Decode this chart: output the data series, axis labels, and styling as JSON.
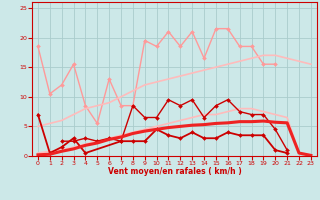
{
  "title": "",
  "xlabel": "Vent moyen/en rafales ( km/h )",
  "ylabel": "",
  "xlim": [
    -0.5,
    23.5
  ],
  "ylim": [
    0,
    26
  ],
  "yticks": [
    0,
    5,
    10,
    15,
    20,
    25
  ],
  "xticks": [
    0,
    1,
    2,
    3,
    4,
    5,
    6,
    7,
    8,
    9,
    10,
    11,
    12,
    13,
    14,
    15,
    16,
    17,
    18,
    19,
    20,
    21,
    22,
    23
  ],
  "bg_color": "#cce8e8",
  "grid_color": "#aacccc",
  "series": [
    {
      "x": [
        0,
        1,
        2,
        3,
        4,
        5,
        6,
        7,
        8,
        9,
        10,
        11,
        12,
        13,
        14,
        15,
        16,
        17,
        18,
        19,
        20,
        21,
        22,
        23
      ],
      "y": [
        18.5,
        10.5,
        12.0,
        15.5,
        8.5,
        5.5,
        13.0,
        8.5,
        8.5,
        19.5,
        18.5,
        21.0,
        18.5,
        21.0,
        16.5,
        21.5,
        21.5,
        18.5,
        18.5,
        15.5,
        15.5,
        null,
        null,
        null
      ],
      "color": "#ff9999",
      "lw": 1.0,
      "marker": "D",
      "ms": 2.0
    },
    {
      "x": [
        0,
        1,
        2,
        3,
        4,
        5,
        6,
        7,
        8,
        9,
        10,
        11,
        12,
        13,
        14,
        15,
        16,
        17,
        18,
        19,
        20,
        21,
        22,
        23
      ],
      "y": [
        5.0,
        5.5,
        6.0,
        7.0,
        8.0,
        8.5,
        9.0,
        10.0,
        11.0,
        12.0,
        12.5,
        13.0,
        13.5,
        14.0,
        14.5,
        15.0,
        15.5,
        16.0,
        16.5,
        17.0,
        17.0,
        16.5,
        16.0,
        15.5
      ],
      "color": "#ffbbbb",
      "lw": 1.2,
      "marker": null,
      "ms": 0
    },
    {
      "x": [
        0,
        1,
        2,
        3,
        4,
        5,
        6,
        7,
        8,
        9,
        10,
        11,
        12,
        13,
        14,
        15,
        16,
        17,
        18,
        19,
        20,
        21,
        22,
        23
      ],
      "y": [
        0.5,
        0.8,
        1.0,
        1.5,
        2.0,
        2.5,
        3.0,
        3.5,
        4.0,
        4.5,
        5.0,
        5.5,
        6.0,
        6.5,
        7.0,
        7.0,
        7.5,
        8.0,
        8.0,
        7.5,
        7.0,
        6.5,
        0.5,
        0.2
      ],
      "color": "#ffbbbb",
      "lw": 1.2,
      "marker": null,
      "ms": 0
    },
    {
      "x": [
        2,
        3,
        4,
        5,
        6,
        7,
        8,
        9,
        10,
        11,
        12,
        13,
        14,
        15,
        16,
        17,
        18,
        19,
        20,
        21
      ],
      "y": [
        2.5,
        2.5,
        3.0,
        2.5,
        3.0,
        2.5,
        8.5,
        6.5,
        6.5,
        9.5,
        8.5,
        9.5,
        6.5,
        8.5,
        9.5,
        7.5,
        7.0,
        7.0,
        4.5,
        1.0
      ],
      "color": "#cc0000",
      "lw": 1.0,
      "marker": "D",
      "ms": 2.0
    },
    {
      "x": [
        0,
        1,
        2,
        3,
        4,
        7,
        8,
        9,
        10,
        11,
        12,
        13,
        14,
        15,
        16,
        17,
        18,
        19,
        20,
        21
      ],
      "y": [
        7.0,
        0.5,
        1.5,
        3.0,
        0.5,
        2.5,
        2.5,
        2.5,
        4.5,
        3.5,
        3.0,
        4.0,
        3.0,
        3.0,
        4.0,
        3.5,
        3.5,
        3.5,
        1.0,
        0.5
      ],
      "color": "#cc0000",
      "lw": 1.3,
      "marker": "D",
      "ms": 2.0
    },
    {
      "x": [
        0,
        1,
        2,
        3,
        4,
        5,
        6,
        7,
        8,
        9,
        10,
        11,
        12,
        13,
        14,
        15,
        16,
        17,
        18,
        19,
        20,
        21,
        22,
        23
      ],
      "y": [
        0.2,
        0.3,
        0.8,
        1.2,
        1.8,
        2.2,
        2.8,
        3.2,
        3.8,
        4.2,
        4.5,
        4.8,
        5.0,
        5.2,
        5.3,
        5.5,
        5.6,
        5.8,
        5.8,
        5.9,
        5.7,
        5.6,
        0.5,
        0.1
      ],
      "color": "#ee2222",
      "lw": 2.2,
      "marker": null,
      "ms": 0
    }
  ]
}
